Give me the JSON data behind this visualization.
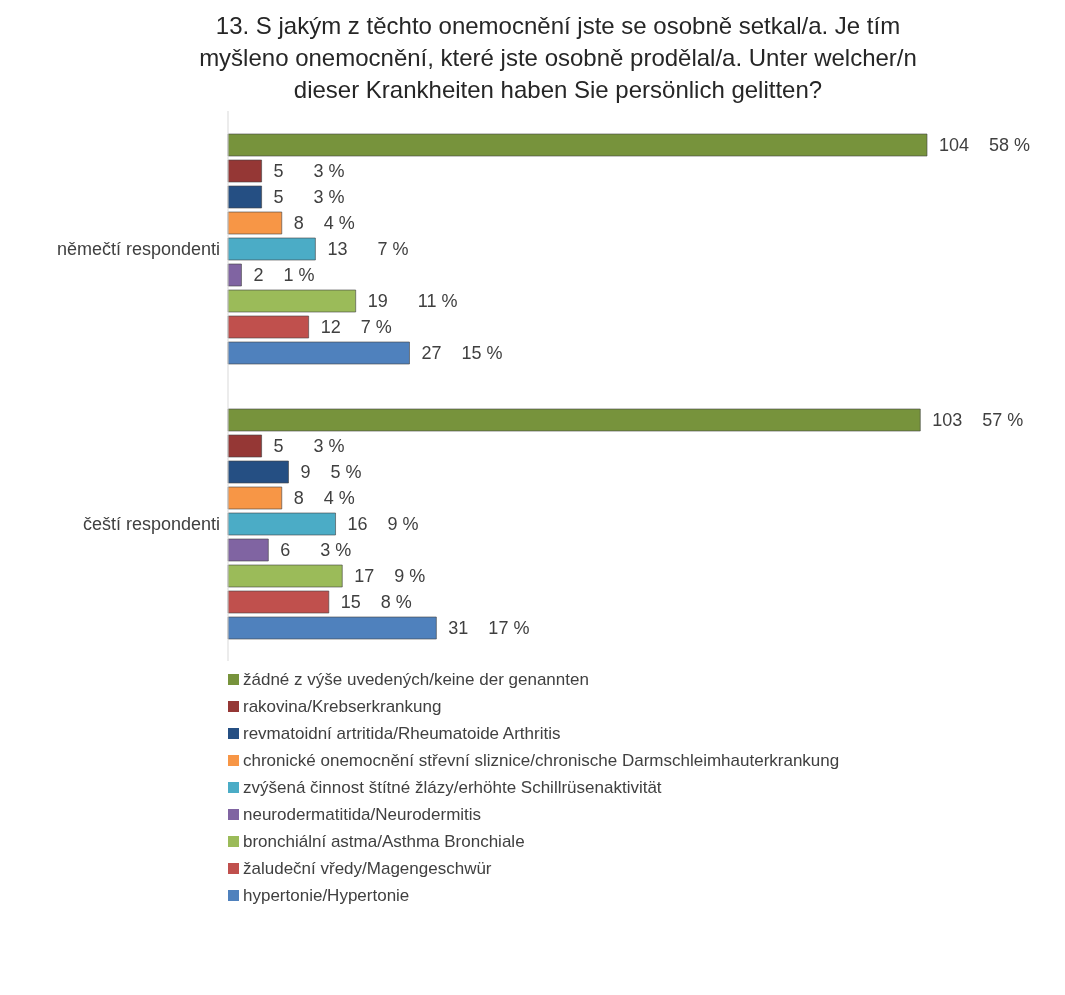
{
  "chart_data": {
    "type": "bar",
    "orientation": "horizontal",
    "title": "13. S jakým z těchto onemocnění jste se osobně setkal/a. Je tím myšleno onemocnění, které jste osobně prodělal/a. Unter welcher/n dieser Krankheiten haben Sie persönlich gelitten?",
    "categories": [
      "němečtí respondenti",
      "čeští respondenti"
    ],
    "series": [
      {
        "name": "žádné z výše uvedených/keine der genannten",
        "color": "#77933c",
        "values": [
          104,
          103
        ],
        "value_labels": [
          "104    58 %",
          "103    57 %"
        ]
      },
      {
        "name": "rakovina/Krebserkrankung",
        "color": "#953735",
        "values": [
          5,
          5
        ],
        "value_labels": [
          "5      3 %",
          "5      3 %"
        ]
      },
      {
        "name": "revmatoidní artritida/Rheumatoide Arthritis",
        "color": "#254f83",
        "values": [
          5,
          9
        ],
        "value_labels": [
          "5      3 %",
          "9    5 %"
        ]
      },
      {
        "name": "chronické onemocnění střevní sliznice/chronische Darmschleimhauterkrankung",
        "color": "#f79646",
        "values": [
          8,
          8
        ],
        "value_labels": [
          "8    4 %",
          "8    4 %"
        ]
      },
      {
        "name": "zvýšená činnost štítné žlázy/erhöhte Schillrüsenaktivität",
        "color": "#4bacc6",
        "values": [
          13,
          16
        ],
        "value_labels": [
          "13      7 %",
          "16    9 %"
        ]
      },
      {
        "name": "neurodermatitida/Neurodermitis",
        "color": "#8064a2",
        "values": [
          2,
          6
        ],
        "value_labels": [
          "2    1 %",
          "6      3 %"
        ]
      },
      {
        "name": "bronchiální astma/Asthma Bronchiale",
        "color": "#9bbb59",
        "values": [
          19,
          17
        ],
        "value_labels": [
          "19      11 %",
          "17    9 %"
        ]
      },
      {
        "name": "žaludeční vředy/Magengeschwür",
        "color": "#c0504d",
        "values": [
          12,
          15
        ],
        "value_labels": [
          "12    7 %",
          "15    8 %"
        ]
      },
      {
        "name": "hypertonie/Hypertonie",
        "color": "#4f81bd",
        "values": [
          27,
          31
        ],
        "value_labels": [
          "27    15 %",
          "31    17 %"
        ]
      }
    ],
    "grid": false,
    "legend": "bottom"
  }
}
